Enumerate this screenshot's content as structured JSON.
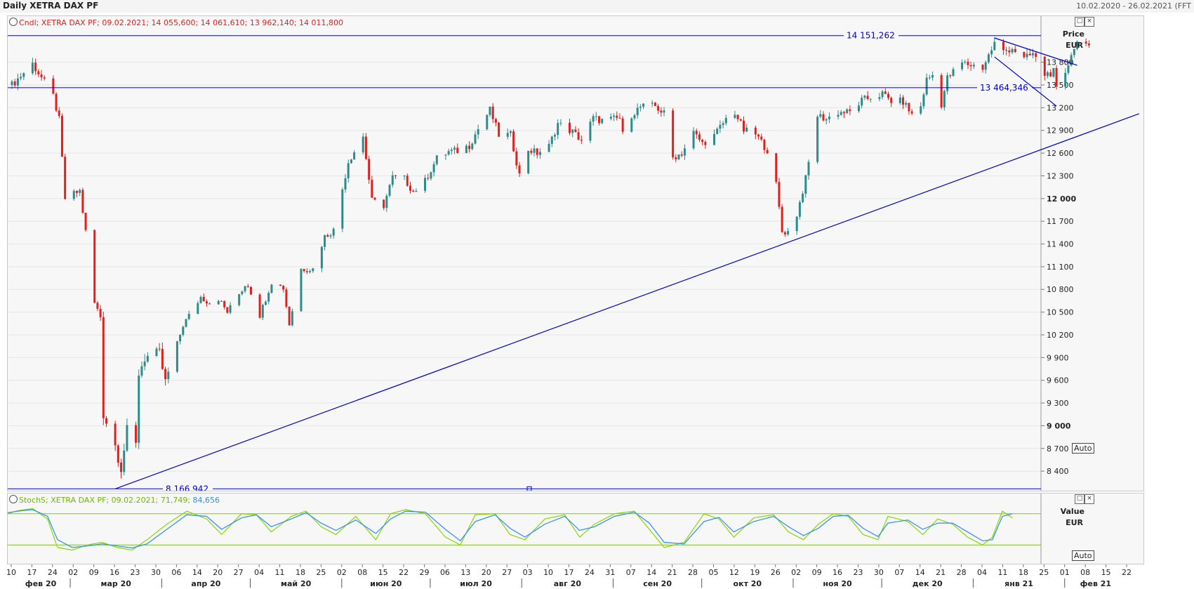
{
  "header": {
    "title": "Daily XETRA DAX PF",
    "date_range": "10.02.2020 - 26.02.2021 (FFT"
  },
  "colors": {
    "up": "#2e8b8b",
    "down": "#e0201c",
    "line": "#0000cc",
    "stoch_k": "#8ad600",
    "stoch_d": "#2a8cff"
  },
  "main_legend": "Cndl; XETRA DAX PF; 09.02.2021; 14 055,600; 14 061,610; 13 962,140; 14 011,800",
  "osc_legend": {
    "text": "StochS; XETRA DAX PF; 09.02.2021; 71,749; ",
    "value2": "84,656"
  },
  "price_axis": {
    "label": "Price",
    "unit": "EUR",
    "auto": "Auto"
  },
  "value_axis": {
    "label": "Value",
    "unit": "EUR",
    "auto": "Auto"
  },
  "annotations": {
    "h1": "14 151,262",
    "h2": "13 464,346",
    "h3": "8 166,942"
  },
  "chart_data": [
    {
      "type": "candlestick",
      "title": "Daily XETRA DAX PF",
      "ylabel": "Price EUR",
      "ylim": [
        8200,
        14320
      ],
      "y_ticks": [
        "8 400",
        "8 700",
        "9 000",
        "9 300",
        "9 600",
        "9 900",
        "10 200",
        "10 500",
        "10 800",
        "11 100",
        "11 400",
        "11 700",
        "12 000",
        "12 300",
        "12 600",
        "12 900",
        "13 200",
        "13 500",
        "13 800"
      ],
      "y_tick_values": [
        8400,
        8700,
        9000,
        9300,
        9600,
        9900,
        10200,
        10500,
        10800,
        11100,
        11400,
        11700,
        12000,
        12300,
        12600,
        12900,
        13200,
        13500,
        13800
      ],
      "bold_ticks": [
        9000,
        12000
      ],
      "horizontal_lines": [
        14151.262,
        13464.346,
        8166.942
      ],
      "trend_lines": [
        {
          "from": [
            "16.03.2020",
            8166.942
          ],
          "to": [
            "26.02.2021",
            13120
          ]
        },
        {
          "from": [
            "08.01.2021",
            14120
          ],
          "to": [
            "05.02.2021",
            13760
          ]
        },
        {
          "from": [
            "08.01.2021",
            13870
          ],
          "to": [
            "29.01.2021",
            13220
          ]
        }
      ],
      "price_points": [
        [
          "10.02.2020",
          13500
        ],
        [
          "17.02.2020",
          13780
        ],
        [
          "24.02.2020",
          13350
        ],
        [
          "26.02.2020",
          13040
        ],
        [
          "28.02.2020",
          12000
        ],
        [
          "04.03.2020",
          12100
        ],
        [
          "06.03.2020",
          11560
        ],
        [
          "09.03.2020",
          10620
        ],
        [
          "11.03.2020",
          10440
        ],
        [
          "12.03.2020",
          9160
        ],
        [
          "16.03.2020",
          8740
        ],
        [
          "18.03.2020",
          8440
        ],
        [
          "20.03.2020",
          8930
        ],
        [
          "23.03.2020",
          8740
        ],
        [
          "24.03.2020",
          9700
        ],
        [
          "26.03.2020",
          9900
        ],
        [
          "31.03.2020",
          9940
        ],
        [
          "02.04.2020",
          9570
        ],
        [
          "06.04.2020",
          10080
        ],
        [
          "08.04.2020",
          10330
        ],
        [
          "14.04.2020",
          10700
        ],
        [
          "17.04.2020",
          10620
        ],
        [
          "20.04.2020",
          10680
        ],
        [
          "23.04.2020",
          10500
        ],
        [
          "29.04.2020",
          10860
        ],
        [
          "30.04.2020",
          10860
        ],
        [
          "04.05.2020",
          10460
        ],
        [
          "08.05.2020",
          10900
        ],
        [
          "12.05.2020",
          10820
        ],
        [
          "14.05.2020",
          10340
        ],
        [
          "18.05.2020",
          11070
        ],
        [
          "22.05.2020",
          11070
        ],
        [
          "26.05.2020",
          11500
        ],
        [
          "29.05.2020",
          11580
        ],
        [
          "03.06.2020",
          12490
        ],
        [
          "08.06.2020",
          12820
        ],
        [
          "11.06.2020",
          11970
        ],
        [
          "15.06.2020",
          11910
        ],
        [
          "18.06.2020",
          12280
        ],
        [
          "22.06.2020",
          12260
        ],
        [
          "25.06.2020",
          12090
        ],
        [
          "29.06.2020",
          12230
        ],
        [
          "03.07.2020",
          12530
        ],
        [
          "07.07.2020",
          12620
        ],
        [
          "10.07.2020",
          12630
        ],
        [
          "14.07.2020",
          12700
        ],
        [
          "17.07.2020",
          12920
        ],
        [
          "21.07.2020",
          13170
        ],
        [
          "24.07.2020",
          12840
        ],
        [
          "28.07.2020",
          12840
        ],
        [
          "31.07.2020",
          12310
        ],
        [
          "03.08.2020",
          12650
        ],
        [
          "06.08.2020",
          12600
        ],
        [
          "10.08.2020",
          12690
        ],
        [
          "13.08.2020",
          12990
        ],
        [
          "18.08.2020",
          12880
        ],
        [
          "21.08.2020",
          12770
        ],
        [
          "25.08.2020",
          13060
        ],
        [
          "28.08.2020",
          13030
        ],
        [
          "03.09.2020",
          13060
        ],
        [
          "04.09.2020",
          12840
        ],
        [
          "07.09.2020",
          13110
        ],
        [
          "10.09.2020",
          13210
        ],
        [
          "15.09.2020",
          13220
        ],
        [
          "18.09.2020",
          13120
        ],
        [
          "21.09.2020",
          12540
        ],
        [
          "24.09.2020",
          12600
        ],
        [
          "28.09.2020",
          12870
        ],
        [
          "01.10.2020",
          12730
        ],
        [
          "05.10.2020",
          12830
        ],
        [
          "09.10.2020",
          13050
        ],
        [
          "12.10.2020",
          13140
        ],
        [
          "15.10.2020",
          12900
        ],
        [
          "19.10.2020",
          12850
        ],
        [
          "23.10.2020",
          12640
        ],
        [
          "26.10.2020",
          12180
        ],
        [
          "28.10.2020",
          11560
        ],
        [
          "30.10.2020",
          11560
        ],
        [
          "02.11.2020",
          11790
        ],
        [
          "05.11.2020",
          12260
        ],
        [
          "09.11.2020",
          13100
        ],
        [
          "12.11.2020",
          13050
        ],
        [
          "16.11.2020",
          13140
        ],
        [
          "20.11.2020",
          13140
        ],
        [
          "24.11.2020",
          13290
        ],
        [
          "27.11.2020",
          13340
        ],
        [
          "01.12.2020",
          13380
        ],
        [
          "04.12.2020",
          13290
        ],
        [
          "08.12.2020",
          13280
        ],
        [
          "11.12.2020",
          13110
        ],
        [
          "14.12.2020",
          13220
        ],
        [
          "16.12.2020",
          13570
        ],
        [
          "18.12.2020",
          13630
        ],
        [
          "21.12.2020",
          13250
        ],
        [
          "23.12.2020",
          13590
        ],
        [
          "28.12.2020",
          13790
        ],
        [
          "04.01.2021",
          13730
        ],
        [
          "06.01.2021",
          13890
        ],
        [
          "08.01.2021",
          14050
        ],
        [
          "11.01.2021",
          13940
        ],
        [
          "14.01.2021",
          13990
        ],
        [
          "18.01.2021",
          13840
        ],
        [
          "21.01.2021",
          13910
        ],
        [
          "25.01.2021",
          13640
        ],
        [
          "28.01.2021",
          13670
        ],
        [
          "29.01.2021",
          13430
        ],
        [
          "01.02.2021",
          13620
        ],
        [
          "03.02.2021",
          13930
        ],
        [
          "05.02.2021",
          14060
        ],
        [
          "08.02.2021",
          14100
        ],
        [
          "09.02.2021",
          14011.8
        ]
      ]
    },
    {
      "type": "line",
      "title": "StochS",
      "ylabel": "Value EUR",
      "levels": [
        80,
        20
      ],
      "series": [
        {
          "name": "71,749",
          "color": "#8ad600",
          "values": [
            [
              0,
              80
            ],
            [
              0.01,
              86
            ],
            [
              0.025,
              90
            ],
            [
              0.04,
              70
            ],
            [
              0.05,
              15
            ],
            [
              0.065,
              10
            ],
            [
              0.08,
              20
            ],
            [
              0.095,
              25
            ],
            [
              0.11,
              15
            ],
            [
              0.125,
              10
            ],
            [
              0.14,
              30
            ],
            [
              0.16,
              60
            ],
            [
              0.18,
              85
            ],
            [
              0.2,
              70
            ],
            [
              0.215,
              40
            ],
            [
              0.235,
              80
            ],
            [
              0.25,
              78
            ],
            [
              0.265,
              45
            ],
            [
              0.285,
              75
            ],
            [
              0.3,
              85
            ],
            [
              0.315,
              55
            ],
            [
              0.33,
              40
            ],
            [
              0.35,
              75
            ],
            [
              0.37,
              30
            ],
            [
              0.385,
              80
            ],
            [
              0.4,
              88
            ],
            [
              0.42,
              80
            ],
            [
              0.44,
              35
            ],
            [
              0.455,
              20
            ],
            [
              0.47,
              78
            ],
            [
              0.49,
              80
            ],
            [
              0.505,
              40
            ],
            [
              0.52,
              30
            ],
            [
              0.54,
              70
            ],
            [
              0.56,
              78
            ],
            [
              0.575,
              35
            ],
            [
              0.59,
              60
            ],
            [
              0.61,
              80
            ],
            [
              0.63,
              85
            ],
            [
              0.645,
              50
            ],
            [
              0.66,
              15
            ],
            [
              0.68,
              25
            ],
            [
              0.7,
              80
            ],
            [
              0.715,
              70
            ],
            [
              0.73,
              35
            ],
            [
              0.75,
              72
            ],
            [
              0.77,
              78
            ],
            [
              0.785,
              45
            ],
            [
              0.8,
              30
            ],
            [
              0.815,
              60
            ],
            [
              0.83,
              80
            ],
            [
              0.845,
              75
            ],
            [
              0.86,
              40
            ],
            [
              0.875,
              30
            ],
            [
              0.885,
              75
            ],
            [
              0.905,
              65
            ],
            [
              0.92,
              40
            ],
            [
              0.935,
              70
            ],
            [
              0.95,
              60
            ],
            [
              0.965,
              35
            ],
            [
              0.98,
              20
            ],
            [
              0.99,
              35
            ],
            [
              1,
              85
            ],
            [
              1.01,
              72
            ]
          ]
        },
        {
          "name": "84,656",
          "color": "#2a8cff",
          "values": [
            [
              0,
              82
            ],
            [
              0.01,
              85
            ],
            [
              0.025,
              88
            ],
            [
              0.04,
              75
            ],
            [
              0.05,
              30
            ],
            [
              0.065,
              15
            ],
            [
              0.08,
              18
            ],
            [
              0.095,
              22
            ],
            [
              0.11,
              18
            ],
            [
              0.125,
              14
            ],
            [
              0.14,
              22
            ],
            [
              0.16,
              50
            ],
            [
              0.18,
              78
            ],
            [
              0.2,
              75
            ],
            [
              0.215,
              50
            ],
            [
              0.235,
              72
            ],
            [
              0.25,
              78
            ],
            [
              0.265,
              55
            ],
            [
              0.285,
              70
            ],
            [
              0.3,
              82
            ],
            [
              0.315,
              62
            ],
            [
              0.33,
              48
            ],
            [
              0.35,
              68
            ],
            [
              0.37,
              42
            ],
            [
              0.385,
              70
            ],
            [
              0.4,
              85
            ],
            [
              0.42,
              83
            ],
            [
              0.44,
              50
            ],
            [
              0.455,
              28
            ],
            [
              0.47,
              65
            ],
            [
              0.49,
              78
            ],
            [
              0.505,
              52
            ],
            [
              0.52,
              35
            ],
            [
              0.54,
              60
            ],
            [
              0.56,
              75
            ],
            [
              0.575,
              48
            ],
            [
              0.59,
              55
            ],
            [
              0.61,
              75
            ],
            [
              0.63,
              83
            ],
            [
              0.645,
              62
            ],
            [
              0.66,
              25
            ],
            [
              0.68,
              22
            ],
            [
              0.7,
              65
            ],
            [
              0.715,
              73
            ],
            [
              0.73,
              45
            ],
            [
              0.75,
              65
            ],
            [
              0.77,
              75
            ],
            [
              0.785,
              55
            ],
            [
              0.8,
              38
            ],
            [
              0.815,
              52
            ],
            [
              0.83,
              75
            ],
            [
              0.845,
              77
            ],
            [
              0.86,
              52
            ],
            [
              0.875,
              36
            ],
            [
              0.885,
              62
            ],
            [
              0.905,
              68
            ],
            [
              0.92,
              50
            ],
            [
              0.935,
              62
            ],
            [
              0.95,
              62
            ],
            [
              0.965,
              45
            ],
            [
              0.98,
              28
            ],
            [
              0.99,
              30
            ],
            [
              1,
              75
            ],
            [
              1.01,
              80
            ]
          ]
        }
      ]
    }
  ],
  "x_axis": {
    "ticks": [
      "10",
      "17",
      "24",
      "02",
      "09",
      "16",
      "23",
      "30",
      "06",
      "14",
      "20",
      "27",
      "04",
      "11",
      "18",
      "25",
      "02",
      "08",
      "15",
      "22",
      "29",
      "06",
      "13",
      "20",
      "27",
      "03",
      "10",
      "17",
      "24",
      "31",
      "07",
      "14",
      "21",
      "28",
      "05",
      "12",
      "19",
      "26",
      "02",
      "09",
      "16",
      "23",
      "30",
      "07",
      "14",
      "21",
      "28",
      "04",
      "11",
      "18",
      "25",
      "01",
      "08",
      "15",
      "22"
    ],
    "months": [
      "фев 20",
      "мар 20",
      "апр 20",
      "май 20",
      "июн 20",
      "июл 20",
      "авг 20",
      "сен 20",
      "окт 20",
      "ноя 20",
      "дек 20",
      "янв 21",
      "фев 21"
    ]
  }
}
